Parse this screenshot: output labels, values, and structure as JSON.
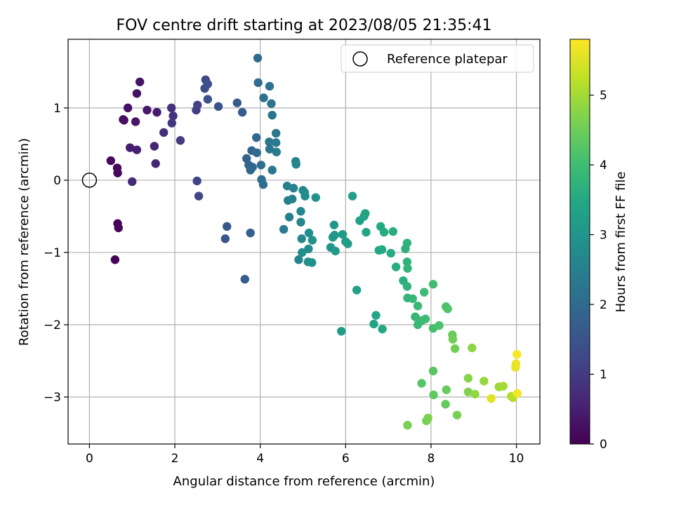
{
  "chart_data": {
    "type": "scatter",
    "title": "FOV centre drift starting at 2023/08/05 21:35:41",
    "xlabel": "Angular distance from reference (arcmin)",
    "ylabel": "Rotation from reference (arcmin)",
    "xlim": [
      -0.5,
      10.55
    ],
    "ylim": [
      -3.65,
      1.95
    ],
    "xticks": [
      0,
      2,
      4,
      6,
      8,
      10
    ],
    "yticks": [
      -3,
      -2,
      -1,
      0,
      1
    ],
    "grid": true,
    "legend": {
      "label": "Reference platepar",
      "location": "top-right"
    },
    "reference_point": {
      "x": 0,
      "y": 0
    },
    "colorbar": {
      "label": "Hours from first FF file",
      "colormap": "viridis",
      "range": [
        0,
        5.8
      ],
      "ticks": [
        0,
        1,
        2,
        3,
        4,
        5
      ]
    },
    "points": [
      [
        0.6,
        -1.1,
        0.05
      ],
      [
        0.66,
        -0.6,
        0.07
      ],
      [
        0.68,
        -0.66,
        0.08
      ],
      [
        0.65,
        0.17,
        0.1
      ],
      [
        0.66,
        0.1,
        0.12
      ],
      [
        0.5,
        0.27,
        0.15
      ],
      [
        0.79,
        0.84,
        0.2
      ],
      [
        0.81,
        0.83,
        0.22
      ],
      [
        0.9,
        1.0,
        0.25
      ],
      [
        1.11,
        1.2,
        0.28
      ],
      [
        1.18,
        1.36,
        0.32
      ],
      [
        1.08,
        0.81,
        0.35
      ],
      [
        1.35,
        0.97,
        0.4
      ],
      [
        1.58,
        0.94,
        0.45
      ],
      [
        0.95,
        0.45,
        0.48
      ],
      [
        1.11,
        0.42,
        0.52
      ],
      [
        1.52,
        0.47,
        0.58
      ],
      [
        1.55,
        0.23,
        0.62
      ],
      [
        1.0,
        -0.02,
        0.68
      ],
      [
        1.74,
        0.66,
        0.75
      ],
      [
        1.92,
        1.0,
        0.8
      ],
      [
        1.96,
        0.89,
        0.85
      ],
      [
        1.93,
        0.79,
        0.9
      ],
      [
        2.13,
        0.55,
        0.98
      ],
      [
        2.5,
        0.97,
        1.05
      ],
      [
        2.53,
        1.04,
        1.1
      ],
      [
        2.52,
        -0.01,
        1.15
      ],
      [
        2.56,
        -0.22,
        1.22
      ],
      [
        2.72,
        1.39,
        1.3
      ],
      [
        2.7,
        1.27,
        1.35
      ],
      [
        2.77,
        1.33,
        1.4
      ],
      [
        2.77,
        1.12,
        1.45
      ],
      [
        3.02,
        1.02,
        1.5
      ],
      [
        3.18,
        -0.81,
        1.55
      ],
      [
        3.22,
        -0.64,
        1.6
      ],
      [
        3.46,
        1.07,
        1.65
      ],
      [
        3.58,
        0.94,
        1.7
      ],
      [
        3.64,
        -1.37,
        1.72
      ],
      [
        3.77,
        -0.73,
        1.75
      ],
      [
        3.68,
        0.3,
        1.8
      ],
      [
        3.73,
        0.21,
        1.85
      ],
      [
        3.8,
        0.41,
        1.88
      ],
      [
        3.77,
        0.14,
        1.92
      ],
      [
        3.82,
        0.18,
        1.95
      ],
      [
        3.91,
        0.59,
        1.98
      ],
      [
        3.94,
        1.69,
        2.0
      ],
      [
        3.95,
        1.35,
        2.03
      ],
      [
        3.92,
        0.38,
        2.05
      ],
      [
        4.02,
        0.21,
        2.08
      ],
      [
        4.03,
        0.01,
        2.1
      ],
      [
        4.07,
        -0.06,
        2.12
      ],
      [
        4.08,
        1.14,
        2.15
      ],
      [
        4.22,
        1.3,
        2.18
      ],
      [
        4.26,
        1.06,
        2.2
      ],
      [
        4.28,
        0.9,
        2.22
      ],
      [
        4.21,
        0.53,
        2.25
      ],
      [
        4.22,
        0.43,
        2.28
      ],
      [
        4.28,
        0.14,
        2.3
      ],
      [
        4.37,
        0.65,
        2.33
      ],
      [
        4.37,
        0.52,
        2.35
      ],
      [
        4.38,
        0.39,
        2.38
      ],
      [
        4.55,
        -0.68,
        2.4
      ],
      [
        4.65,
        -0.28,
        2.45
      ],
      [
        4.63,
        -0.08,
        2.48
      ],
      [
        4.68,
        -0.51,
        2.5
      ],
      [
        4.75,
        -0.26,
        2.52
      ],
      [
        4.78,
        -0.11,
        2.55
      ],
      [
        4.83,
        0.26,
        2.58
      ],
      [
        4.84,
        0.22,
        2.6
      ],
      [
        4.9,
        -1.1,
        2.62
      ],
      [
        4.95,
        -0.43,
        2.65
      ],
      [
        4.97,
        -0.81,
        2.68
      ],
      [
        4.95,
        -0.58,
        2.7
      ],
      [
        5.0,
        -0.14,
        2.72
      ],
      [
        5.04,
        -0.17,
        2.75
      ],
      [
        5.05,
        -0.22,
        2.78
      ],
      [
        4.98,
        -1.0,
        2.8
      ],
      [
        5.13,
        -0.95,
        2.82
      ],
      [
        5.12,
        -1.13,
        2.85
      ],
      [
        5.14,
        -0.73,
        2.88
      ],
      [
        5.21,
        -1.14,
        2.9
      ],
      [
        5.22,
        -0.83,
        2.92
      ],
      [
        5.3,
        -0.24,
        2.95
      ],
      [
        5.65,
        -0.93,
        3.0
      ],
      [
        5.73,
        -0.62,
        3.05
      ],
      [
        5.7,
        -0.79,
        3.08
      ],
      [
        5.74,
        -0.76,
        3.1
      ],
      [
        5.76,
        -0.98,
        3.12
      ],
      [
        5.93,
        -0.75,
        3.15
      ],
      [
        5.9,
        -2.09,
        3.18
      ],
      [
        6.0,
        -0.85,
        3.2
      ],
      [
        6.05,
        -0.88,
        3.22
      ],
      [
        6.16,
        -0.22,
        3.25
      ],
      [
        6.26,
        -1.52,
        3.28
      ],
      [
        6.33,
        -0.56,
        3.3
      ],
      [
        6.43,
        -0.5,
        3.33
      ],
      [
        6.46,
        -0.46,
        3.35
      ],
      [
        6.48,
        -0.72,
        3.38
      ],
      [
        6.66,
        -1.99,
        3.4
      ],
      [
        6.71,
        -1.87,
        3.42
      ],
      [
        6.78,
        -0.97,
        3.45
      ],
      [
        6.85,
        -0.96,
        3.48
      ],
      [
        6.86,
        -2.06,
        3.5
      ],
      [
        6.82,
        -0.64,
        3.52
      ],
      [
        6.9,
        -0.72,
        3.55
      ],
      [
        7.06,
        -1.01,
        3.58
      ],
      [
        7.11,
        -0.71,
        3.6
      ],
      [
        7.18,
        -1.2,
        3.62
      ],
      [
        7.35,
        -1.39,
        3.65
      ],
      [
        7.4,
        -0.95,
        3.68
      ],
      [
        7.44,
        -1.47,
        3.7
      ],
      [
        7.44,
        -0.87,
        3.72
      ],
      [
        7.44,
        -1.13,
        3.75
      ],
      [
        7.45,
        -1.22,
        3.78
      ],
      [
        7.45,
        -1.63,
        3.8
      ],
      [
        7.57,
        -1.64,
        3.82
      ],
      [
        7.63,
        -1.89,
        3.85
      ],
      [
        7.69,
        -1.74,
        3.88
      ],
      [
        7.69,
        -2.0,
        3.9
      ],
      [
        7.79,
        -1.94,
        3.92
      ],
      [
        7.84,
        -1.55,
        3.95
      ],
      [
        7.87,
        -1.92,
        3.98
      ],
      [
        8.05,
        -1.44,
        4.0
      ],
      [
        8.05,
        -2.05,
        4.05
      ],
      [
        8.19,
        -2.01,
        4.1
      ],
      [
        8.35,
        -1.75,
        4.15
      ],
      [
        8.39,
        -1.78,
        4.2
      ],
      [
        7.78,
        -2.81,
        4.25
      ],
      [
        8.05,
        -2.64,
        4.3
      ],
      [
        8.06,
        -2.97,
        4.35
      ],
      [
        8.34,
        -3.1,
        4.38
      ],
      [
        8.36,
        -2.9,
        4.42
      ],
      [
        8.5,
        -2.14,
        4.45
      ],
      [
        8.51,
        -2.2,
        4.5
      ],
      [
        8.56,
        -2.33,
        4.55
      ],
      [
        8.61,
        -3.25,
        4.58
      ],
      [
        7.45,
        -3.39,
        4.6
      ],
      [
        7.89,
        -3.33,
        4.62
      ],
      [
        7.93,
        -3.29,
        4.65
      ],
      [
        8.87,
        -2.93,
        4.7
      ],
      [
        8.87,
        -2.74,
        4.75
      ],
      [
        8.96,
        -2.32,
        4.8
      ],
      [
        9.03,
        -2.96,
        4.85
      ],
      [
        9.24,
        -2.78,
        4.9
      ],
      [
        9.59,
        -2.86,
        4.95
      ],
      [
        9.69,
        -2.85,
        5.0
      ],
      [
        9.88,
        -2.99,
        5.1
      ],
      [
        9.92,
        -3.01,
        5.15
      ],
      [
        9.41,
        -3.02,
        5.55
      ],
      [
        9.98,
        -2.59,
        5.6
      ],
      [
        9.99,
        -2.54,
        5.65
      ],
      [
        10.02,
        -2.95,
        5.7
      ],
      [
        10.01,
        -2.41,
        5.75
      ]
    ]
  }
}
